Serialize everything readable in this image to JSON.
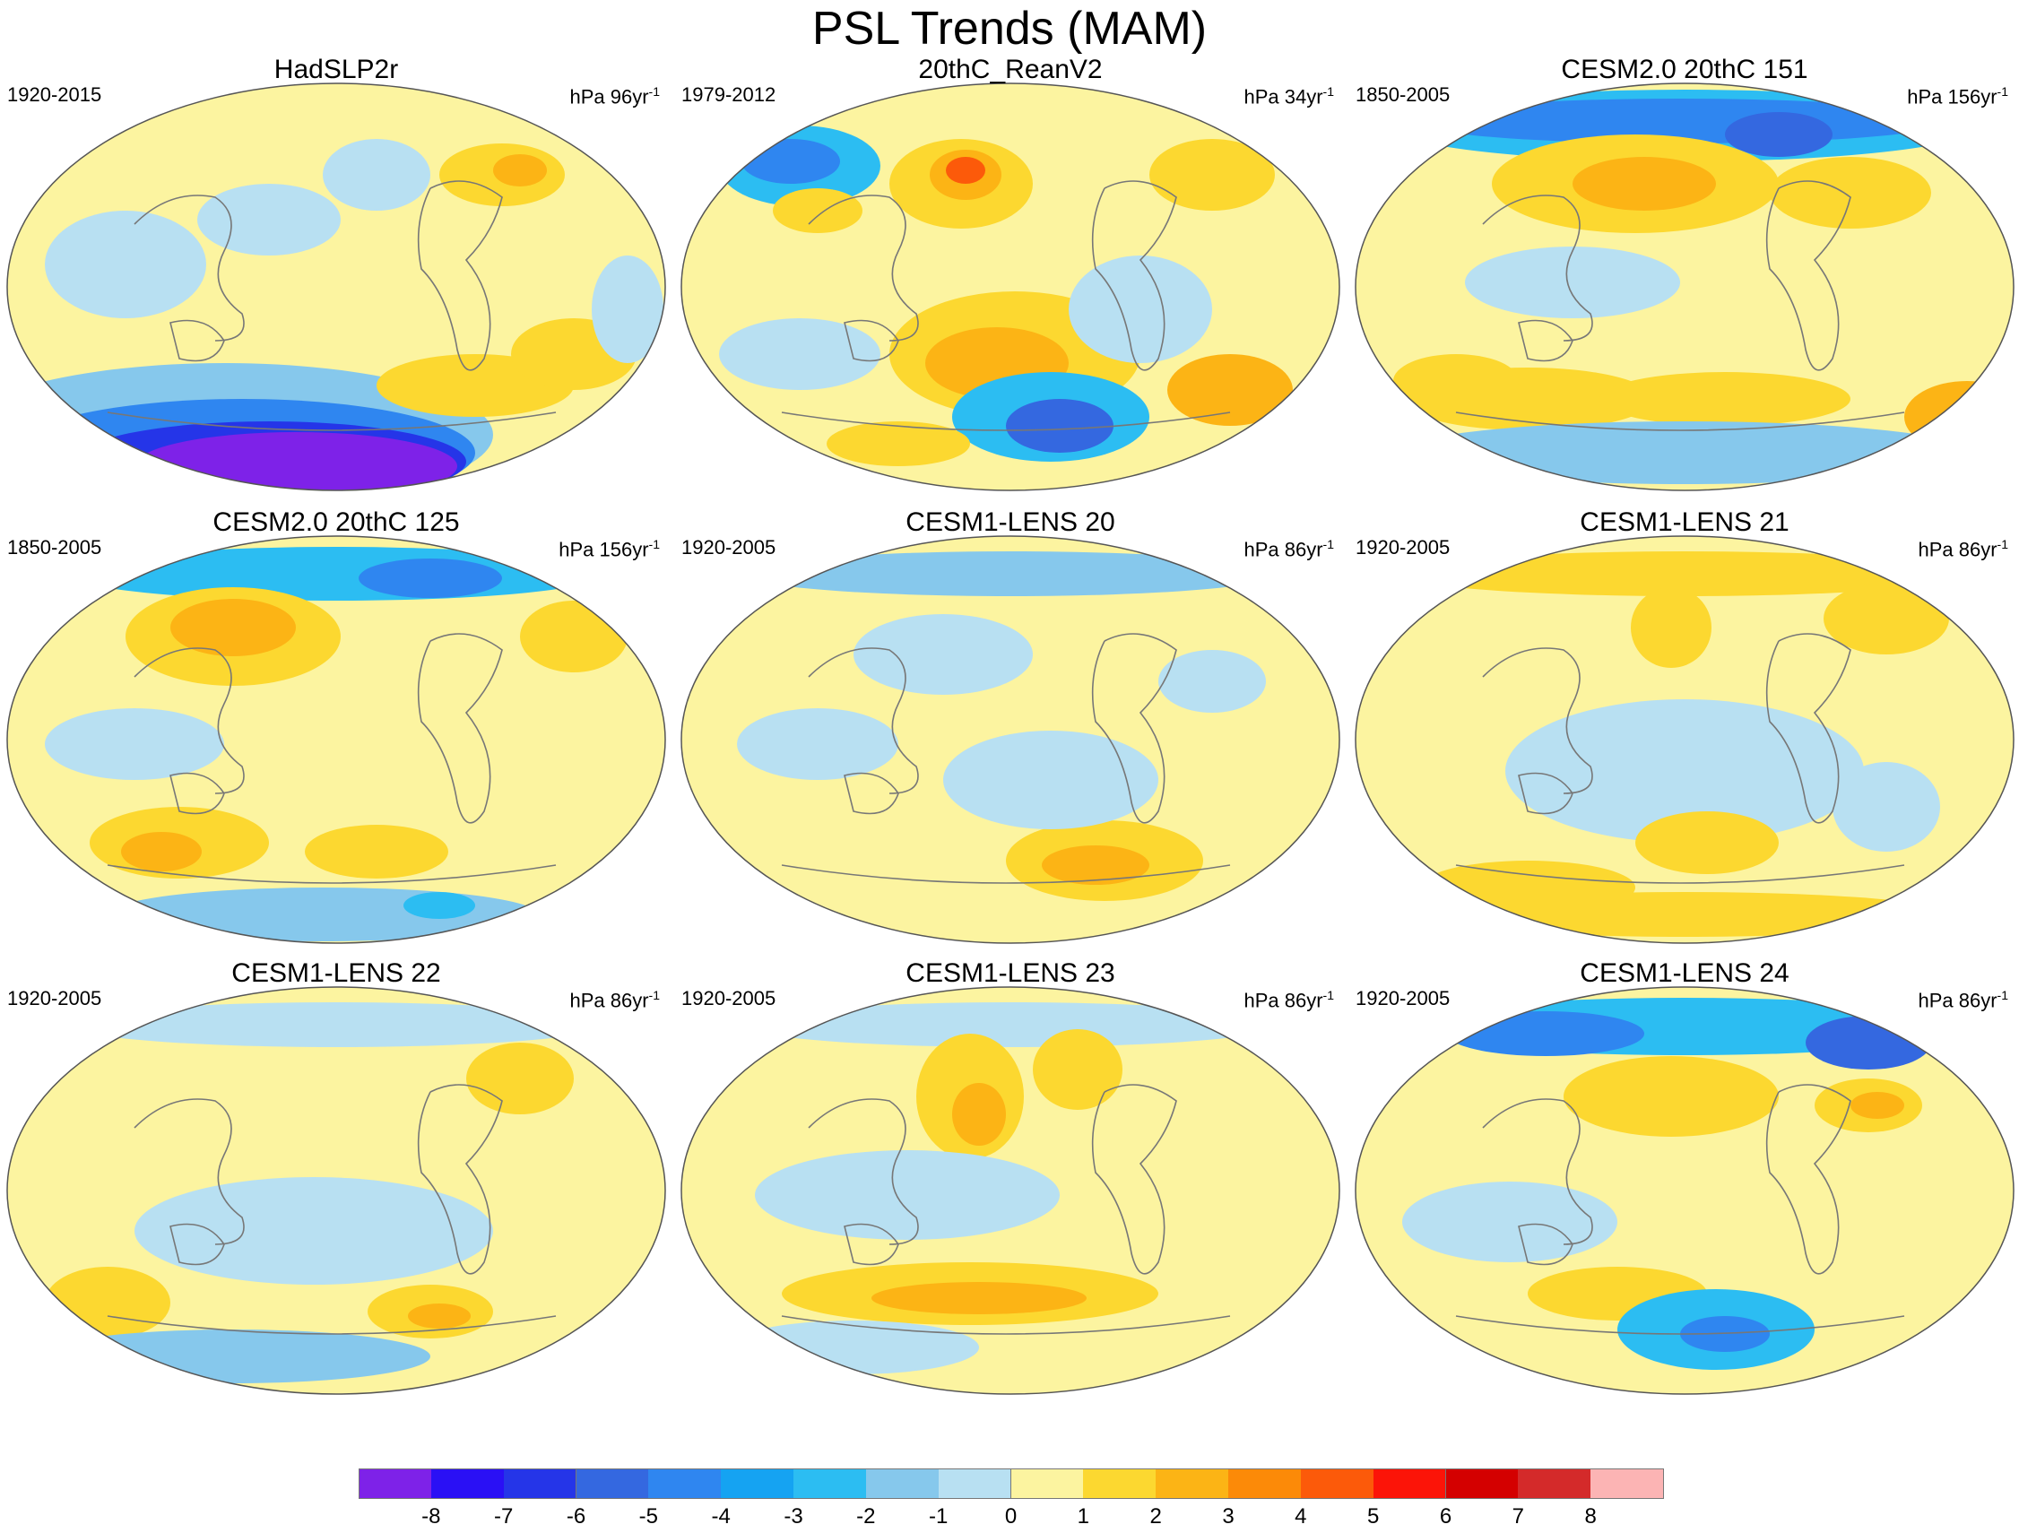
{
  "title": "PSL Trends (MAM)",
  "panels": [
    {
      "title": "HadSLP2r",
      "period": "1920-2015",
      "unit_main": "hPa 96yr",
      "unit_exp": "-1"
    },
    {
      "title": "20thC_ReanV2",
      "period": "1979-2012",
      "unit_main": "hPa 34yr",
      "unit_exp": "-1"
    },
    {
      "title": "CESM2.0 20thC 151",
      "period": "1850-2005",
      "unit_main": "hPa 156yr",
      "unit_exp": "-1"
    },
    {
      "title": "CESM2.0 20thC 125",
      "period": "1850-2005",
      "unit_main": "hPa 156yr",
      "unit_exp": "-1"
    },
    {
      "title": "CESM1-LENS 20",
      "period": "1920-2005",
      "unit_main": "hPa 86yr",
      "unit_exp": "-1"
    },
    {
      "title": "CESM1-LENS 21",
      "period": "1920-2005",
      "unit_main": "hPa 86yr",
      "unit_exp": "-1"
    },
    {
      "title": "CESM1-LENS 22",
      "period": "1920-2005",
      "unit_main": "hPa 86yr",
      "unit_exp": "-1"
    },
    {
      "title": "CESM1-LENS 23",
      "period": "1920-2005",
      "unit_main": "hPa 86yr",
      "unit_exp": "-1"
    },
    {
      "title": "CESM1-LENS 24",
      "period": "1920-2005",
      "unit_main": "hPa 86yr",
      "unit_exp": "-1"
    }
  ],
  "colorbar": {
    "labels": [
      "-8",
      "-7",
      "-6",
      "-5",
      "-4",
      "-3",
      "-2",
      "-1",
      "0",
      "1",
      "2",
      "3",
      "4",
      "5",
      "6",
      "7",
      "8"
    ],
    "colors": [
      "#7e22e8",
      "#2a10f5",
      "#2535e8",
      "#3468e0",
      "#2f86f0",
      "#15a3f2",
      "#2cbdf2",
      "#86c8ec",
      "#b8e0f2",
      "#fcf4a0",
      "#fcd830",
      "#fcb415",
      "#fc8a08",
      "#fc5a0a",
      "#fc1408",
      "#d40000",
      "#d42a2a",
      "#fcb4b4"
    ]
  }
}
